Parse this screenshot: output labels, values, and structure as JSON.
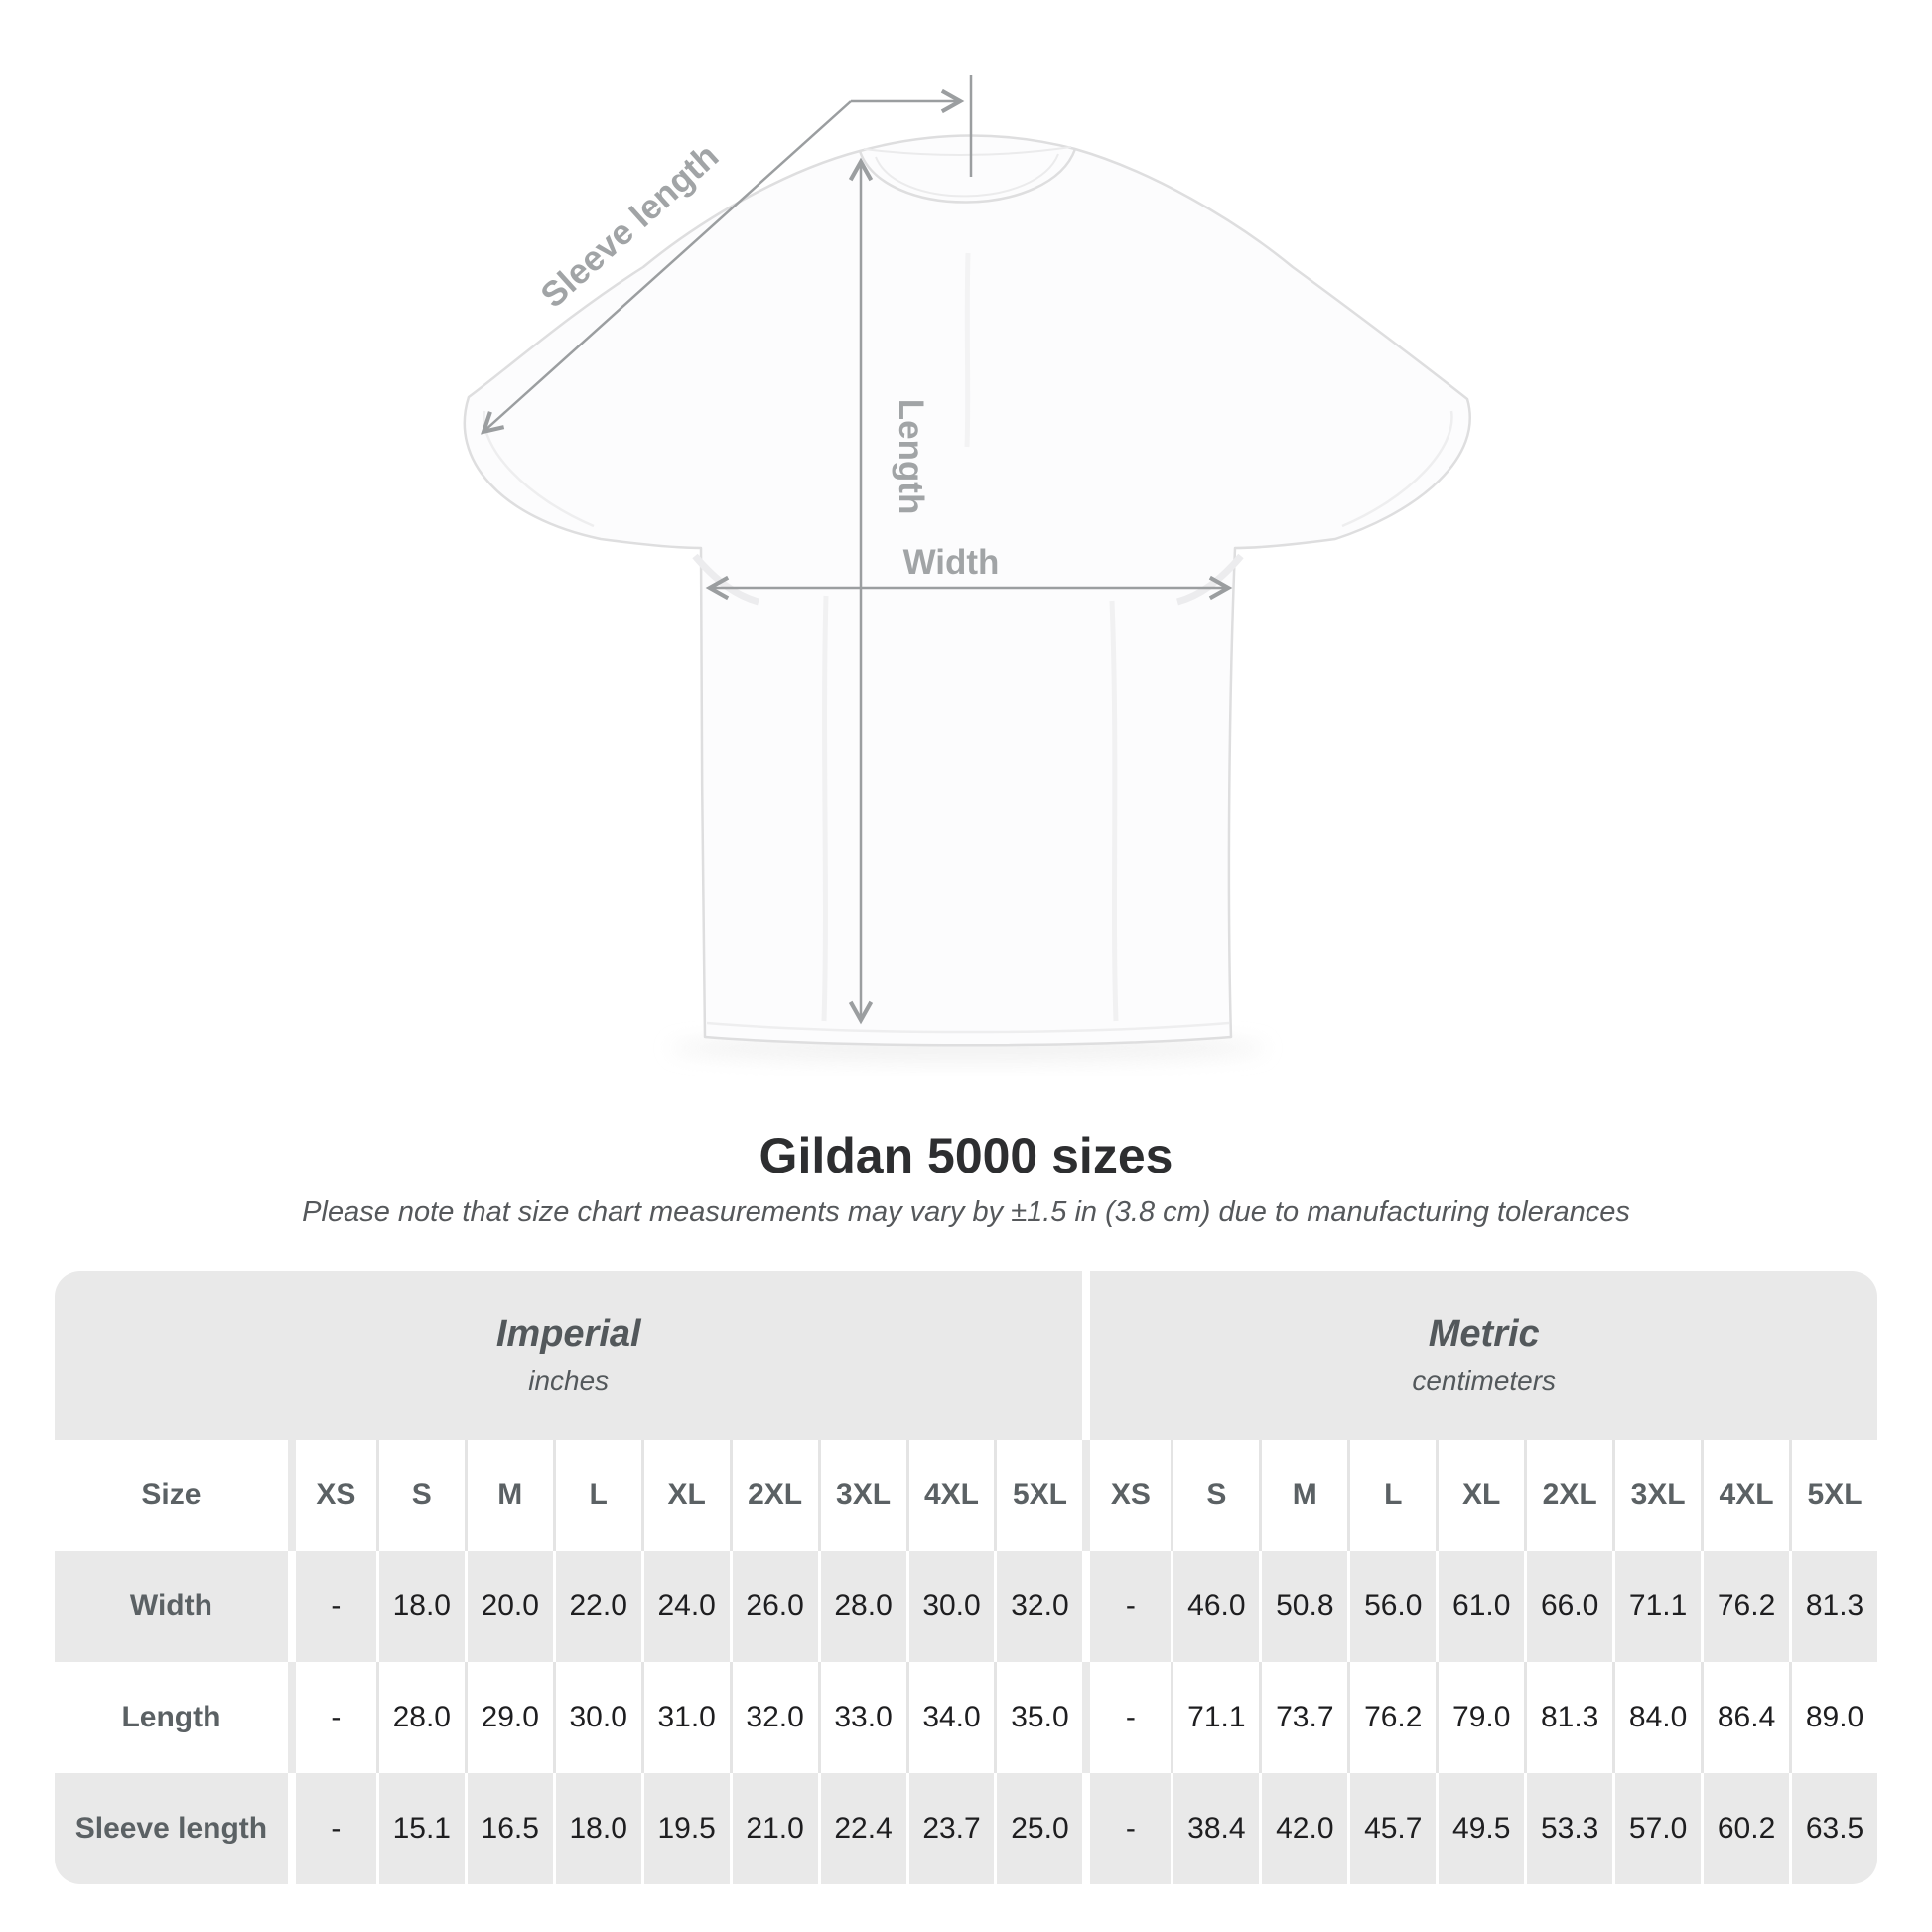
{
  "header": {
    "title": "Gildan 5000 sizes",
    "note": "Please note that size chart measurements may vary by ±1.5 in (3.8 cm) due to manufacturing tolerances"
  },
  "diagram": {
    "sleeve_length_label": "Sleeve length",
    "length_label": "Length",
    "width_label": "Width"
  },
  "table": {
    "size_column_label": "Size",
    "unit_groups": [
      {
        "name": "Imperial",
        "unit": "inches"
      },
      {
        "name": "Metric",
        "unit": "centimeters"
      }
    ],
    "sizes": [
      "XS",
      "S",
      "M",
      "L",
      "XL",
      "2XL",
      "3XL",
      "4XL",
      "5XL"
    ],
    "rows": [
      {
        "label": "Width",
        "imperial": [
          "-",
          "18.0",
          "20.0",
          "22.0",
          "24.0",
          "26.0",
          "28.0",
          "30.0",
          "32.0"
        ],
        "metric": [
          "-",
          "46.0",
          "50.8",
          "56.0",
          "61.0",
          "66.0",
          "71.1",
          "76.2",
          "81.3"
        ]
      },
      {
        "label": "Length",
        "imperial": [
          "-",
          "28.0",
          "29.0",
          "30.0",
          "31.0",
          "32.0",
          "33.0",
          "34.0",
          "35.0"
        ],
        "metric": [
          "-",
          "71.1",
          "73.7",
          "76.2",
          "79.0",
          "81.3",
          "84.0",
          "86.4",
          "89.0"
        ]
      },
      {
        "label": "Sleeve length",
        "imperial": [
          "-",
          "15.1",
          "16.5",
          "18.0",
          "19.5",
          "21.0",
          "22.4",
          "23.7",
          "25.0"
        ],
        "metric": [
          "-",
          "38.4",
          "42.0",
          "45.7",
          "49.5",
          "53.3",
          "57.0",
          "60.2",
          "63.5"
        ]
      }
    ]
  },
  "colors": {
    "table_gray": "#e9e9e9",
    "heading_text": "#2d2e30",
    "table_header_text": "#5b6164",
    "value_text": "#1e1e20",
    "dimension_line": "#9b9ea0",
    "dimension_label": "#a1a4a6"
  }
}
